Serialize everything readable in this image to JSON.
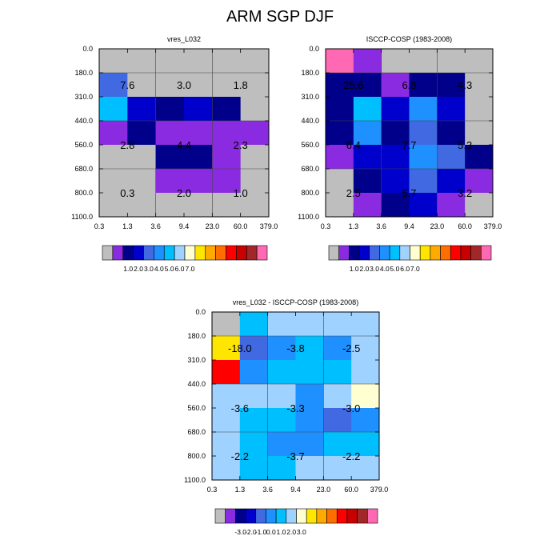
{
  "title": "ARM SGP DJF",
  "colors": {
    "missing": "#bebebe",
    "abs": [
      "#8a2be2",
      "#00008b",
      "#0000cd",
      "#4169e1",
      "#1e90ff",
      "#00bfff",
      "#a0d2ff",
      "#ffffd1",
      "#ffe600",
      "#ffaa00",
      "#ff6e00",
      "#ff0000",
      "#c80000",
      "#a02828",
      "#ff69b4"
    ],
    "diff": [
      "#8a2be2",
      "#00008b",
      "#0000cd",
      "#4169e1",
      "#1e90ff",
      "#00bfff",
      "#a0d2ff",
      "#ffffd1",
      "#ffe600",
      "#ffaa00",
      "#ff6e00",
      "#ff0000",
      "#c80000",
      "#a02828",
      "#ff69b4"
    ]
  },
  "chart_data": [
    {
      "id": "vres",
      "type": "heatmap",
      "title": "vres_L032",
      "x_ticks": [
        "0.3",
        "1.3",
        "3.6",
        "9.4",
        "23.0",
        "60.0",
        "379.0"
      ],
      "y_ticks": [
        "0.0",
        "180.0",
        "310.0",
        "440.0",
        "560.0",
        "680.0",
        "800.0",
        "1100.0"
      ],
      "xlabel": "",
      "ylabel": "",
      "cells": [
        [
          0,
          0,
          0,
          0,
          0,
          0
        ],
        [
          3,
          0,
          0,
          0,
          0,
          0
        ],
        [
          5,
          2,
          1,
          2,
          1,
          0
        ],
        [
          0,
          1,
          0,
          0,
          0,
          0
        ],
        [
          0,
          0,
          1,
          1,
          0,
          0
        ],
        [
          0,
          0,
          1,
          1,
          1,
          0
        ],
        [
          0,
          0,
          0,
          0,
          0,
          0
        ]
      ],
      "cell_colors": [
        [
          "missing",
          "missing",
          "missing",
          "missing",
          "missing",
          "missing"
        ],
        [
          "#4169e1",
          "missing",
          "missing",
          "missing",
          "missing",
          "missing"
        ],
        [
          "#00bfff",
          "#0000cd",
          "#00008b",
          "#0000cd",
          "#00008b",
          "missing"
        ],
        [
          "#8a2be2",
          "#00008b",
          "#8a2be2",
          "#8a2be2",
          "#8a2be2",
          "#8a2be2"
        ],
        [
          "missing",
          "missing",
          "#00008b",
          "#00008b",
          "#8a2be2",
          "missing"
        ],
        [
          "missing",
          "missing",
          "#8a2be2",
          "#8a2be2",
          "#8a2be2",
          "missing"
        ],
        [
          "missing",
          "missing",
          "missing",
          "missing",
          "missing",
          "missing"
        ]
      ],
      "group_labels": [
        [
          "7.6",
          "3.0",
          "1.8"
        ],
        [
          "2.8",
          "4.4",
          "2.3"
        ],
        [
          "0.3",
          "2.0",
          "1.0"
        ]
      ],
      "colorbar": {
        "tick_labels": [
          "1.0",
          "2.0",
          "3.0",
          "4.0",
          "5.0",
          "6.0",
          "7.0"
        ],
        "colors": [
          "#bebebe",
          "#8a2be2",
          "#00008b",
          "#0000cd",
          "#4169e1",
          "#1e90ff",
          "#00bfff",
          "#a0d2ff",
          "#ffffd1",
          "#ffe600",
          "#ffaa00",
          "#ff6e00",
          "#ff0000",
          "#c80000",
          "#a02828",
          "#ff69b4"
        ]
      }
    },
    {
      "id": "isccp",
      "type": "heatmap",
      "title": "ISCCP-COSP (1983-2008)",
      "x_ticks": [
        "0.3",
        "1.3",
        "3.6",
        "9.4",
        "23.0",
        "60.0",
        "379.0"
      ],
      "y_ticks": [
        "0.0",
        "180.0",
        "310.0",
        "440.0",
        "560.0",
        "680.0",
        "800.0",
        "1100.0"
      ],
      "xlabel": "",
      "ylabel": "",
      "cell_colors": [
        [
          "#ff69b4",
          "#8a2be2",
          "missing",
          "missing",
          "missing",
          "missing"
        ],
        [
          "#00008b",
          "#00008b",
          "#8a2be2",
          "#00008b",
          "#00008b",
          "missing"
        ],
        [
          "#00008b",
          "#00bfff",
          "#0000cd",
          "#1e90ff",
          "#0000cd",
          "missing"
        ],
        [
          "#00008b",
          "#1e90ff",
          "#00008b",
          "#4169e1",
          "#00008b",
          "missing"
        ],
        [
          "#8a2be2",
          "#0000cd",
          "#0000cd",
          "#1e90ff",
          "#4169e1",
          "#00008b"
        ],
        [
          "missing",
          "#00008b",
          "#0000cd",
          "#4169e1",
          "#0000cd",
          "#8a2be2"
        ],
        [
          "missing",
          "#8a2be2",
          "#00008b",
          "#0000cd",
          "#8a2be2",
          "missing"
        ]
      ],
      "group_labels": [
        [
          "25.6",
          "6.8",
          "4.3"
        ],
        [
          "6.4",
          "7.7",
          "5.3"
        ],
        [
          "2.5",
          "5.7",
          "3.2"
        ]
      ],
      "colorbar": {
        "tick_labels": [
          "1.0",
          "2.0",
          "3.0",
          "4.0",
          "5.0",
          "6.0",
          "7.0"
        ],
        "colors": [
          "#bebebe",
          "#8a2be2",
          "#00008b",
          "#0000cd",
          "#4169e1",
          "#1e90ff",
          "#00bfff",
          "#a0d2ff",
          "#ffffd1",
          "#ffe600",
          "#ffaa00",
          "#ff6e00",
          "#ff0000",
          "#c80000",
          "#a02828",
          "#ff69b4"
        ]
      }
    },
    {
      "id": "diff",
      "type": "heatmap",
      "title": "vres_L032 - ISCCP-COSP (1983-2008)",
      "x_ticks": [
        "0.3",
        "1.3",
        "3.6",
        "9.4",
        "23.0",
        "60.0",
        "379.0"
      ],
      "y_ticks": [
        "0.0",
        "180.0",
        "310.0",
        "440.0",
        "560.0",
        "680.0",
        "800.0",
        "1100.0"
      ],
      "xlabel": "",
      "ylabel": "",
      "cell_colors": [
        [
          "missing",
          "#00bfff",
          "#a0d2ff",
          "#a0d2ff",
          "#a0d2ff",
          "#a0d2ff"
        ],
        [
          "#ffe600",
          "#4169e1",
          "#1e90ff",
          "#00bfff",
          "#1e90ff",
          "#a0d2ff"
        ],
        [
          "#ff0000",
          "#1e90ff",
          "#00bfff",
          "#00bfff",
          "#00bfff",
          "#a0d2ff"
        ],
        [
          "#a0d2ff",
          "#a0d2ff",
          "#a0d2ff",
          "#1e90ff",
          "#a0d2ff",
          "#ffffd1"
        ],
        [
          "#a0d2ff",
          "#00bfff",
          "#00bfff",
          "#1e90ff",
          "#4169e1",
          "#1e90ff"
        ],
        [
          "#a0d2ff",
          "#00bfff",
          "#1e90ff",
          "#1e90ff",
          "#00bfff",
          "#00bfff"
        ],
        [
          "#a0d2ff",
          "#00bfff",
          "#00bfff",
          "#a0d2ff",
          "#a0d2ff",
          "#a0d2ff"
        ]
      ],
      "group_labels": [
        [
          "-18.0",
          "-3.8",
          "-2.5"
        ],
        [
          "-3.6",
          "-3.3",
          "-3.0"
        ],
        [
          "-2.2",
          "-3.7",
          "-2.2"
        ]
      ],
      "colorbar": {
        "tick_labels": [
          "-3.0",
          "-2.0",
          "-1.0",
          "0.0",
          "1.0",
          "2.0",
          "3.0"
        ],
        "colors": [
          "#bebebe",
          "#8a2be2",
          "#00008b",
          "#0000cd",
          "#4169e1",
          "#1e90ff",
          "#00bfff",
          "#a0d2ff",
          "#ffffd1",
          "#ffe600",
          "#ffaa00",
          "#ff6e00",
          "#ff0000",
          "#c80000",
          "#a02828",
          "#ff69b4"
        ]
      }
    }
  ]
}
